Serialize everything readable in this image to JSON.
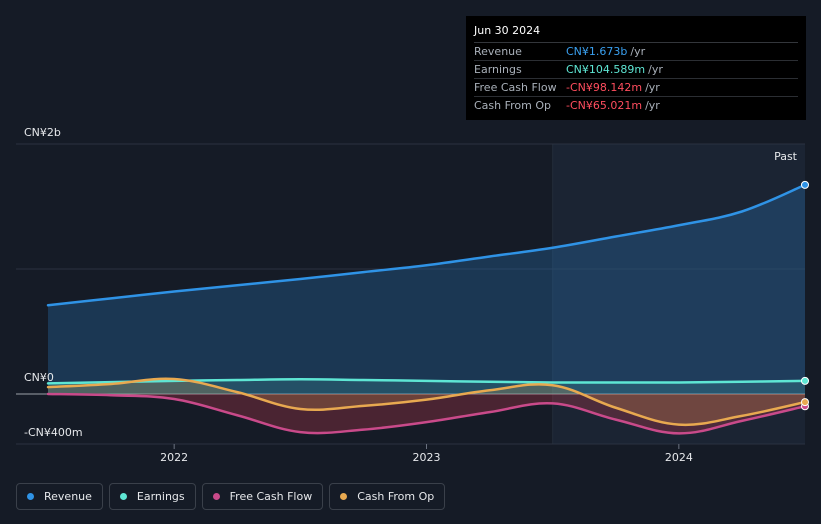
{
  "tooltip": {
    "date": "Jun 30 2024",
    "rows": [
      {
        "label": "Revenue",
        "value": "CN¥1.673b",
        "unit": "/yr",
        "color": "#3aa0f0"
      },
      {
        "label": "Earnings",
        "value": "CN¥104.589m",
        "unit": "/yr",
        "color": "#5ee6d4"
      },
      {
        "label": "Free Cash Flow",
        "value": "-CN¥98.142m",
        "unit": "/yr",
        "color": "#ff4d5e"
      },
      {
        "label": "Cash From Op",
        "value": "-CN¥65.021m",
        "unit": "/yr",
        "color": "#ff4d5e"
      }
    ]
  },
  "past_label": "Past",
  "legend": [
    {
      "label": "Revenue",
      "color": "#2f93e6"
    },
    {
      "label": "Earnings",
      "color": "#5ee6d4"
    },
    {
      "label": "Free Cash Flow",
      "color": "#c94a8a"
    },
    {
      "label": "Cash From Op",
      "color": "#e8a950"
    }
  ],
  "chart_data": {
    "type": "line",
    "y_tick_labels": [
      "CN¥2b",
      "CN¥0",
      "-CN¥400m"
    ],
    "x_tick_labels": [
      "2022",
      "2023",
      "2024"
    ],
    "x_ticks": [
      2022.0,
      2023.0,
      2024.0
    ],
    "ylim": [
      -400,
      2000
    ],
    "xlim": [
      2021.5,
      2024.5
    ],
    "past_start": 2023.5,
    "grid": true,
    "legend_position": "bottom-left",
    "series": [
      {
        "name": "Revenue",
        "color": "#2f93e6",
        "fill": "rgba(40,110,170,0.35)",
        "x": [
          2021.5,
          2021.75,
          2022.0,
          2022.25,
          2022.5,
          2022.75,
          2023.0,
          2023.25,
          2023.5,
          2023.75,
          2024.0,
          2024.25,
          2024.5
        ],
        "y": [
          710,
          765,
          820,
          870,
          920,
          975,
          1030,
          1100,
          1170,
          1260,
          1350,
          1460,
          1673
        ]
      },
      {
        "name": "Earnings",
        "color": "#5ee6d4",
        "fill": "rgba(94,230,212,0.15)",
        "x": [
          2021.5,
          2021.75,
          2022.0,
          2022.25,
          2022.5,
          2022.75,
          2023.0,
          2023.25,
          2023.5,
          2023.75,
          2024.0,
          2024.25,
          2024.5
        ],
        "y": [
          85,
          95,
          105,
          112,
          118,
          112,
          105,
          98,
          92,
          92,
          92,
          98,
          105
        ]
      },
      {
        "name": "Free Cash Flow",
        "color": "#c94a8a",
        "fill": "rgba(200,60,80,0.30)",
        "x": [
          2021.5,
          2021.75,
          2022.0,
          2022.25,
          2022.5,
          2022.75,
          2023.0,
          2023.25,
          2023.5,
          2023.75,
          2024.0,
          2024.25,
          2024.5
        ],
        "y": [
          0,
          -10,
          -40,
          -170,
          -305,
          -285,
          -225,
          -145,
          -75,
          -205,
          -315,
          -215,
          -98
        ]
      },
      {
        "name": "Cash From Op",
        "color": "#e8a950",
        "fill": "rgba(232,169,80,0.22)",
        "x": [
          2021.5,
          2021.75,
          2022.0,
          2022.25,
          2022.5,
          2022.75,
          2023.0,
          2023.25,
          2023.5,
          2023.75,
          2024.0,
          2024.25,
          2024.5
        ],
        "y": [
          55,
          80,
          120,
          15,
          -120,
          -95,
          -45,
          30,
          70,
          -110,
          -245,
          -175,
          -65
        ]
      }
    ]
  }
}
